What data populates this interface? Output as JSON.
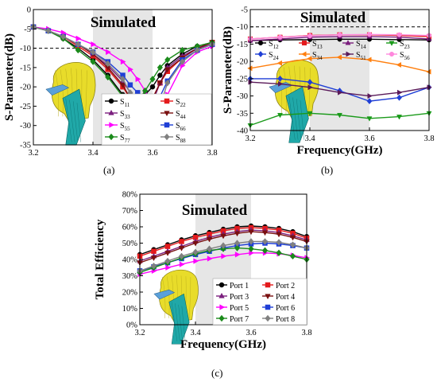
{
  "chart_data": [
    {
      "id": "a",
      "type": "line",
      "panel_label": "(a)",
      "title": "Simulated",
      "xlabel": "",
      "ylabel": "S-Parameter(dB)",
      "xlim": [
        3.2,
        3.8
      ],
      "ylim": [
        -35,
        0
      ],
      "x_ticks": [
        3.2,
        3.4,
        3.6,
        3.8
      ],
      "x_tick_labels": [
        "3.2",
        "3.4",
        "3.6",
        "3.8"
      ],
      "y_ticks": [
        0,
        -5,
        -10,
        -15,
        -20,
        -25,
        -30,
        -35
      ],
      "y_tick_labels": [
        "0",
        "-5",
        "-10",
        "-15",
        "-20",
        "-25",
        "-30",
        "-35"
      ],
      "shaded_band": [
        3.4,
        3.6
      ],
      "reference_line": -10,
      "legend_placement": "bottom-right",
      "legend_columns": 2,
      "x": [
        3.2,
        3.25,
        3.3,
        3.35,
        3.4,
        3.45,
        3.5,
        3.525,
        3.55,
        3.575,
        3.6,
        3.625,
        3.65,
        3.7,
        3.75,
        3.8
      ],
      "series": [
        {
          "label": "S",
          "sub": "11",
          "color": "#000000",
          "marker": "circle",
          "values": [
            -4.5,
            -5.5,
            -7.5,
            -10,
            -13,
            -17,
            -22,
            -24.5,
            -24,
            -22,
            -20,
            -17,
            -14.5,
            -11.5,
            -9.5,
            -8.5
          ]
        },
        {
          "label": "S",
          "sub": "22",
          "color": "#e41a1c",
          "marker": "square",
          "values": [
            -4.5,
            -5.5,
            -7,
            -9.5,
            -12,
            -15.5,
            -20,
            -23,
            -24.5,
            -24.5,
            -23,
            -19,
            -16,
            -12.5,
            -10,
            -8.5
          ]
        },
        {
          "label": "S",
          "sub": "33",
          "color": "#7b1f7e",
          "marker": "triangle-up",
          "values": [
            -4.5,
            -5.5,
            -7,
            -9,
            -11.5,
            -14.5,
            -18.5,
            -21.5,
            -25,
            -27.5,
            -24,
            -19,
            -15,
            -12,
            -10,
            -9
          ]
        },
        {
          "label": "S",
          "sub": "44",
          "color": "#7a1010",
          "marker": "triangle-down",
          "values": [
            -4.5,
            -5.5,
            -7,
            -9,
            -11.5,
            -15,
            -19.5,
            -23,
            -25.5,
            -27,
            -23,
            -19,
            -15.5,
            -12.5,
            -10,
            -8.5
          ]
        },
        {
          "label": "S",
          "sub": "55",
          "color": "#ff00ff",
          "marker": "triangle-right",
          "values": [
            -4.5,
            -5,
            -6,
            -7.5,
            -9,
            -11,
            -13.5,
            -15.5,
            -18,
            -21,
            -25,
            -28.5,
            -22,
            -14.5,
            -11,
            -9.5
          ]
        },
        {
          "label": "S",
          "sub": "66",
          "color": "#1f3fd6",
          "marker": "square",
          "values": [
            -4.5,
            -5.5,
            -7,
            -9,
            -11,
            -13.5,
            -17,
            -19.5,
            -21.5,
            -23,
            -24,
            -22.5,
            -18.5,
            -13,
            -10.5,
            -9
          ]
        },
        {
          "label": "S",
          "sub": "77",
          "color": "#1a8a1a",
          "marker": "diamond",
          "values": [
            -4.5,
            -5.5,
            -7.5,
            -10.5,
            -13.5,
            -17.5,
            -22.5,
            -24.5,
            -24,
            -21,
            -18,
            -15,
            -13,
            -10.5,
            -9.5,
            -8.5
          ]
        },
        {
          "label": "S",
          "sub": "88",
          "color": "#808080",
          "marker": "diamond",
          "values": [
            -4.5,
            -5.5,
            -7,
            -9,
            -11,
            -14,
            -18,
            -21.5,
            -25,
            -29,
            -30.5,
            -25,
            -19,
            -13.5,
            -10.5,
            -9
          ]
        }
      ]
    },
    {
      "id": "b",
      "type": "line",
      "panel_label": "(b)",
      "title": "Simulated",
      "xlabel": "Frequency(GHz)",
      "ylabel": "S-Parameter(dB)",
      "xlim": [
        3.2,
        3.8
      ],
      "ylim": [
        -40,
        -5
      ],
      "x_ticks": [
        3.2,
        3.4,
        3.6,
        3.8
      ],
      "x_tick_labels": [
        "3.2",
        "3.4",
        "3.6",
        "3.8"
      ],
      "y_ticks": [
        -5,
        -10,
        -15,
        -20,
        -25,
        -30,
        -35,
        -40
      ],
      "y_tick_labels": [
        "-5",
        "-10",
        "-15",
        "-20",
        "-25",
        "-30",
        "-35",
        "-40"
      ],
      "shaded_band": [
        3.4,
        3.6
      ],
      "reference_line": -10,
      "legend_placement": "top",
      "legend_columns": 4,
      "x": [
        3.2,
        3.3,
        3.4,
        3.5,
        3.6,
        3.7,
        3.8
      ],
      "series": [
        {
          "label": "S",
          "sub": "12",
          "color": "#000000",
          "marker": "circle",
          "values": [
            -14,
            -13.8,
            -13.7,
            -13.6,
            -13.6,
            -13.7,
            -13.8
          ]
        },
        {
          "label": "S",
          "sub": "13",
          "color": "#e41a1c",
          "marker": "square",
          "values": [
            -13.5,
            -13,
            -12.5,
            -12.3,
            -12.3,
            -12.5,
            -12.8
          ]
        },
        {
          "label": "S",
          "sub": "14",
          "color": "#7b1f7e",
          "marker": "triangle-up",
          "values": [
            -14,
            -13.5,
            -13,
            -12.8,
            -12.8,
            -13,
            -13.5
          ]
        },
        {
          "label": "S",
          "sub": "23",
          "color": "#1a9a1a",
          "marker": "triangle-down",
          "values": [
            -38.5,
            -35.5,
            -35,
            -35.5,
            -36.5,
            -36,
            -35
          ]
        },
        {
          "label": "S",
          "sub": "24",
          "color": "#1f3fd6",
          "marker": "diamond",
          "values": [
            -25,
            -25,
            -26,
            -28.5,
            -31.5,
            -30.5,
            -27.5
          ]
        },
        {
          "label": "S",
          "sub": "34",
          "color": "#ff7f0e",
          "marker": "triangle-left",
          "values": [
            -22,
            -20.5,
            -19.2,
            -18.8,
            -19.5,
            -21,
            -23
          ]
        },
        {
          "label": "S",
          "sub": "51",
          "color": "#5a1a5a",
          "marker": "triangle-right",
          "values": [
            -26,
            -26.5,
            -27.5,
            -29,
            -30,
            -29,
            -27.5
          ]
        },
        {
          "label": "S",
          "sub": "56",
          "color": "#ff88dd",
          "marker": "circle",
          "values": [
            -13.5,
            -13,
            -12.6,
            -12.3,
            -12.2,
            -12.3,
            -12.5
          ]
        }
      ]
    },
    {
      "id": "c",
      "type": "line",
      "panel_label": "(c)",
      "title": "Simulated",
      "xlabel": "Frequency(GHz)",
      "ylabel": "Total Efficiency",
      "xlim": [
        3.2,
        3.8
      ],
      "ylim": [
        0,
        80
      ],
      "x_ticks": [
        3.2,
        3.4,
        3.6,
        3.8
      ],
      "x_tick_labels": [
        "3.2",
        "3.4",
        "3.6",
        "3.8"
      ],
      "y_ticks": [
        0,
        10,
        20,
        30,
        40,
        50,
        60,
        70,
        80
      ],
      "y_tick_labels": [
        "0%",
        "10%",
        "20%",
        "30%",
        "40%",
        "50%",
        "60%",
        "70%",
        "80%"
      ],
      "shaded_band": [
        3.4,
        3.6
      ],
      "legend_placement": "bottom-right",
      "legend_columns": 2,
      "x": [
        3.2,
        3.25,
        3.3,
        3.35,
        3.4,
        3.45,
        3.5,
        3.55,
        3.6,
        3.65,
        3.7,
        3.75,
        3.8
      ],
      "series": [
        {
          "label": "Port 1",
          "color": "#000000",
          "marker": "circle",
          "values": [
            43,
            46,
            49,
            52,
            54.5,
            56.5,
            58.5,
            60,
            60.5,
            60,
            59,
            57,
            54
          ]
        },
        {
          "label": "Port 2",
          "color": "#e41a1c",
          "marker": "square",
          "values": [
            42,
            45,
            48,
            51,
            53.5,
            55.5,
            57.5,
            59,
            59.5,
            59,
            58,
            56,
            53
          ]
        },
        {
          "label": "Port 3",
          "color": "#7b1f7e",
          "marker": "triangle-up",
          "values": [
            39,
            42,
            45,
            48,
            51,
            53.5,
            55.5,
            57,
            58,
            57.5,
            56.5,
            54.5,
            52
          ]
        },
        {
          "label": "Port 4",
          "color": "#7a1010",
          "marker": "triangle-down",
          "values": [
            38,
            41,
            44,
            47,
            50,
            52.5,
            54.5,
            56,
            57,
            56.5,
            55.5,
            53.5,
            51
          ]
        },
        {
          "label": "Port 5",
          "color": "#ff00ff",
          "marker": "triangle-right",
          "values": [
            31,
            33,
            35,
            37,
            39,
            40.5,
            42,
            43,
            44,
            44,
            43.5,
            42.5,
            41
          ]
        },
        {
          "label": "Port 6",
          "color": "#1f3fd6",
          "marker": "square",
          "values": [
            33,
            35.5,
            38,
            40.5,
            43,
            45,
            47,
            48.5,
            49.5,
            50,
            49.5,
            48.5,
            47
          ]
        },
        {
          "label": "Port 7",
          "color": "#1a8a1a",
          "marker": "diamond",
          "values": [
            32,
            35,
            38,
            41,
            43.5,
            45.5,
            46.5,
            47,
            46.5,
            45.5,
            44,
            42,
            40
          ]
        },
        {
          "label": "Port 8",
          "color": "#808080",
          "marker": "diamond",
          "values": [
            33,
            36,
            39,
            42,
            44.5,
            46.5,
            48.5,
            50,
            51,
            51,
            50.5,
            49,
            47
          ]
        }
      ]
    }
  ]
}
